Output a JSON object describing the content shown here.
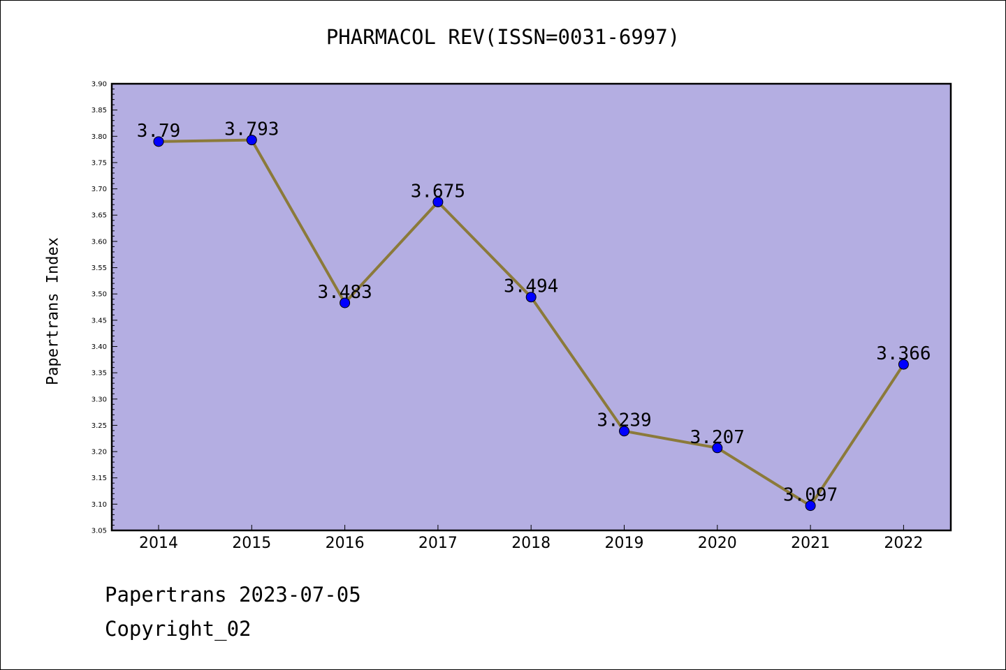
{
  "chart_data": {
    "type": "line",
    "title": "PHARMACOL REV(ISSN=0031-6997)",
    "xlabel": "",
    "ylabel": "Papertrans Index",
    "categories": [
      "2014",
      "2015",
      "2016",
      "2017",
      "2018",
      "2019",
      "2020",
      "2021",
      "2022"
    ],
    "series": [
      {
        "values": [
          3.79,
          3.793,
          3.483,
          3.675,
          3.494,
          3.239,
          3.207,
          3.097,
          3.366
        ],
        "labels": [
          "3.79",
          "3.793",
          "3.483",
          "3.675",
          "3.494",
          "3.239",
          "3.207",
          "3.097",
          "3.366"
        ]
      }
    ],
    "ylim": [
      3.05,
      3.9
    ],
    "yticks": [
      "3.05",
      "3.10",
      "3.15",
      "3.20",
      "3.25",
      "3.30",
      "3.35",
      "3.40",
      "3.45",
      "3.50",
      "3.55",
      "3.60",
      "3.65",
      "3.70",
      "3.75",
      "3.80",
      "3.85",
      "3.90"
    ],
    "grid": false,
    "colors": {
      "plot_background": "#b4aee2",
      "line": "#8b7a3a",
      "marker": "#0000ff"
    }
  },
  "footer": {
    "line1": "Papertrans 2023-07-05",
    "line2": "Copyright_02"
  }
}
